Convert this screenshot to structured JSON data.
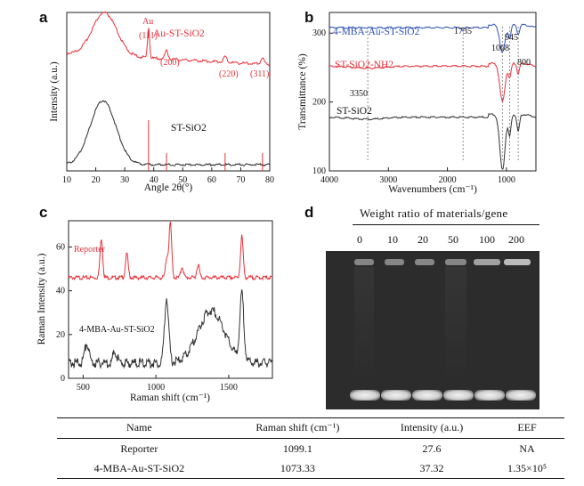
{
  "panels": {
    "a": {
      "letter": "a",
      "xlabel": "Angle 2θ(°)",
      "ylabel": "Intensity (a.u.)",
      "series_labels": {
        "top": "Au-ST-SiO2",
        "bottom": "ST-SiO2"
      },
      "peak_labels": {
        "au": "Au",
        "p111": "(111)",
        "p200": "(200)",
        "p220": "(220)",
        "p311": "(311)"
      },
      "colors": {
        "top": "#e8313a",
        "bottom": "#2b2b2b"
      }
    },
    "b": {
      "letter": "b",
      "xlabel": "Wavenumbers (cm⁻¹)",
      "ylabel": "Transmittance (%)",
      "series_labels": {
        "top": "4-MBA-Au-ST-SiO2",
        "mid": "ST-SiO2-NH2",
        "bottom": "ST-SiO2"
      },
      "peak_labels": {
        "p1735": "1735",
        "p1068": "1068",
        "p945": "945",
        "p800": "800",
        "p3350": "3350"
      },
      "colors": {
        "top": "#2f53b8",
        "mid": "#e8313a",
        "bottom": "#333333"
      }
    },
    "c": {
      "letter": "c",
      "xlabel": "Raman shift (cm⁻¹)",
      "ylabel": "Raman Intensity (a.u.)",
      "series_labels": {
        "top": "Reporter",
        "bottom": "4-MBA-Au-ST-SiO2"
      },
      "colors": {
        "top": "#e8313a",
        "bottom": "#333333"
      }
    },
    "d": {
      "letter": "d",
      "title": "Weight ratio of materials/gene",
      "lanes": [
        "0",
        "10",
        "20",
        "50",
        "100",
        "200"
      ]
    }
  },
  "chart_data": [
    {
      "type": "line",
      "panel": "a",
      "title": "",
      "xlabel": "Angle 2θ(°)",
      "ylabel": "Intensity (a.u.)",
      "xlim": [
        10,
        80
      ],
      "x_ticks": [
        "10",
        "20",
        "30",
        "40",
        "50",
        "60",
        "70",
        "80"
      ],
      "series": [
        {
          "name": "Au-ST-SiO2",
          "peaks": [
            {
              "x": 23,
              "rel": 0.82
            },
            {
              "x": 38.2,
              "rel": 0.55
            },
            {
              "x": 44.4,
              "rel": 0.16
            },
            {
              "x": 64.6,
              "rel": 0.1
            },
            {
              "x": 77.5,
              "rel": 0.11
            }
          ]
        },
        {
          "name": "ST-SiO2",
          "peaks": [
            {
              "x": 22.5,
              "rel": 1.0
            }
          ]
        }
      ],
      "reference_lines": [
        38.2,
        44.4,
        64.6,
        77.5
      ]
    },
    {
      "type": "line",
      "panel": "b",
      "xlabel": "Wavenumbers (cm⁻¹)",
      "ylabel": "Transmittance (%)",
      "xlim": [
        4000,
        500
      ],
      "ylim": [
        100,
        330
      ],
      "x_ticks": [
        "4000",
        "3000",
        "2000",
        "1000"
      ],
      "y_ticks": [
        "100",
        "200",
        "300"
      ],
      "series": [
        {
          "name": "4-MBA-Au-ST-SiO2",
          "baseline": 308,
          "bands": [
            {
              "x": 1735,
              "depth": 4
            },
            {
              "x": 1068,
              "depth": 40
            },
            {
              "x": 945,
              "depth": 18
            },
            {
              "x": 800,
              "depth": 14
            }
          ]
        },
        {
          "name": "ST-SiO2-NH2",
          "baseline": 252,
          "bands": [
            {
              "x": 3350,
              "depth": 3
            },
            {
              "x": 1068,
              "depth": 55
            },
            {
              "x": 945,
              "depth": 20
            },
            {
              "x": 800,
              "depth": 15
            }
          ]
        },
        {
          "name": "ST-SiO2",
          "baseline": 178,
          "bands": [
            {
              "x": 3350,
              "depth": 3
            },
            {
              "x": 1068,
              "depth": 80
            },
            {
              "x": 945,
              "depth": 30
            },
            {
              "x": 800,
              "depth": 25
            }
          ]
        }
      ],
      "reference_lines": [
        3350,
        1735,
        1068,
        945,
        800
      ]
    },
    {
      "type": "line",
      "panel": "c",
      "xlabel": "Raman shift (cm⁻¹)",
      "ylabel": "Raman Intensity (a.u.)",
      "xlim": [
        400,
        1800
      ],
      "ylim": [
        0,
        72
      ],
      "x_ticks": [
        "500",
        "1000",
        "1500"
      ],
      "y_ticks": [
        "0",
        "20",
        "40",
        "60"
      ],
      "series": [
        {
          "name": "Reporter",
          "baseline": 46,
          "peaks": [
            {
              "x": 625,
              "h": 18
            },
            {
              "x": 800,
              "h": 11
            },
            {
              "x": 1075,
              "h": 9
            },
            {
              "x": 1099,
              "h": 25
            },
            {
              "x": 1180,
              "h": 5
            },
            {
              "x": 1290,
              "h": 6
            },
            {
              "x": 1590,
              "h": 19
            }
          ]
        },
        {
          "name": "4-MBA-Au-ST-SiO2",
          "baseline": 7,
          "peaks": [
            {
              "x": 525,
              "h": 9
            },
            {
              "x": 720,
              "h": 5
            },
            {
              "x": 1073,
              "h": 30
            },
            {
              "x": 1380,
              "h": 24
            },
            {
              "x": 1590,
              "h": 30
            }
          ]
        }
      ]
    }
  ],
  "table": {
    "headers": [
      "Name",
      "Raman shift (cm⁻¹)",
      "Intensity (a.u.)",
      "EEF"
    ],
    "rows": [
      [
        "Reporter",
        "1099.1",
        "27.6",
        "NA"
      ],
      [
        "4-MBA-Au-ST-SiO2",
        "1073.33",
        "37.32",
        "1.35×10⁵"
      ]
    ]
  }
}
